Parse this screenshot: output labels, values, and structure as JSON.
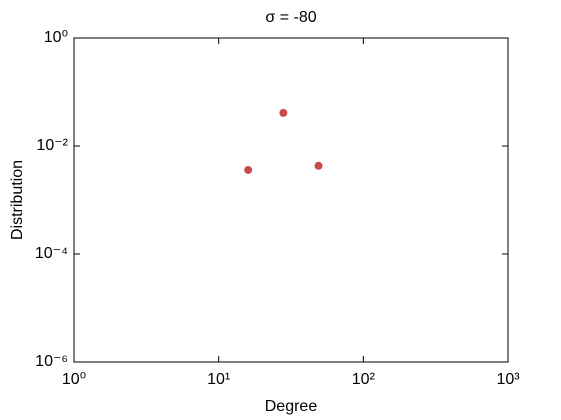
{
  "chart_data": {
    "type": "scatter",
    "title": "σ = -80",
    "x_label": "Degree",
    "y_label": "Distribution",
    "x_scale": "log",
    "y_scale": "log",
    "xlim": [
      1,
      1000
    ],
    "ylim": [
      1e-06,
      1
    ],
    "xticks": [
      {
        "value": 1,
        "label": "10⁰"
      },
      {
        "value": 10,
        "label": "10¹"
      },
      {
        "value": 100,
        "label": "10²"
      },
      {
        "value": 1000,
        "label": "10³"
      }
    ],
    "yticks": [
      {
        "value": 1e-06,
        "label": "10⁻⁶"
      },
      {
        "value": 0.0001,
        "label": "10⁻⁴"
      },
      {
        "value": 0.01,
        "label": "10⁻²"
      },
      {
        "value": 1,
        "label": "10⁰"
      }
    ],
    "series": [
      {
        "color": "#c84b4b",
        "x": [
          16,
          28,
          49
        ],
        "values": [
          0.0036,
          0.041,
          0.0043
        ]
      }
    ]
  }
}
